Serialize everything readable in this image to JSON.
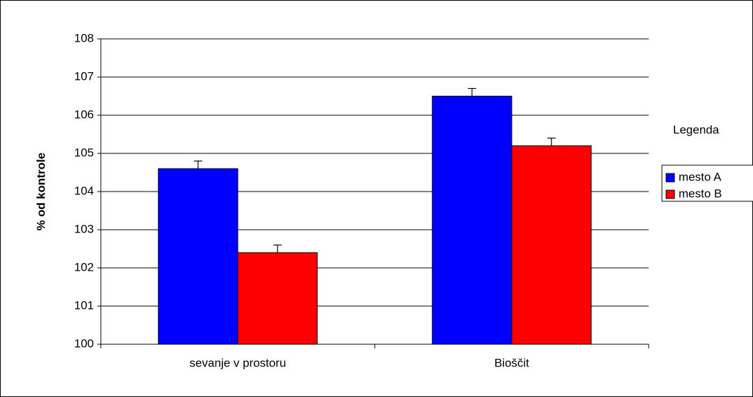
{
  "chart_data": {
    "type": "bar",
    "y_label": "% od kontrole",
    "categories": [
      "sevanje v prostoru",
      "Bioščit"
    ],
    "series": [
      {
        "name": "mesto A",
        "color": "#0000ff",
        "values": [
          104.6,
          106.5
        ],
        "errors": [
          0.2,
          0.2
        ]
      },
      {
        "name": "mesto B",
        "color": "#ff0000",
        "values": [
          102.4,
          105.2
        ],
        "errors": [
          0.2,
          0.2
        ]
      }
    ],
    "ylim": [
      100,
      108
    ],
    "yticks": [
      100,
      101,
      102,
      103,
      104,
      105,
      106,
      107,
      108
    ],
    "grid": true,
    "legend_title": "Legenda",
    "legend": "right"
  }
}
